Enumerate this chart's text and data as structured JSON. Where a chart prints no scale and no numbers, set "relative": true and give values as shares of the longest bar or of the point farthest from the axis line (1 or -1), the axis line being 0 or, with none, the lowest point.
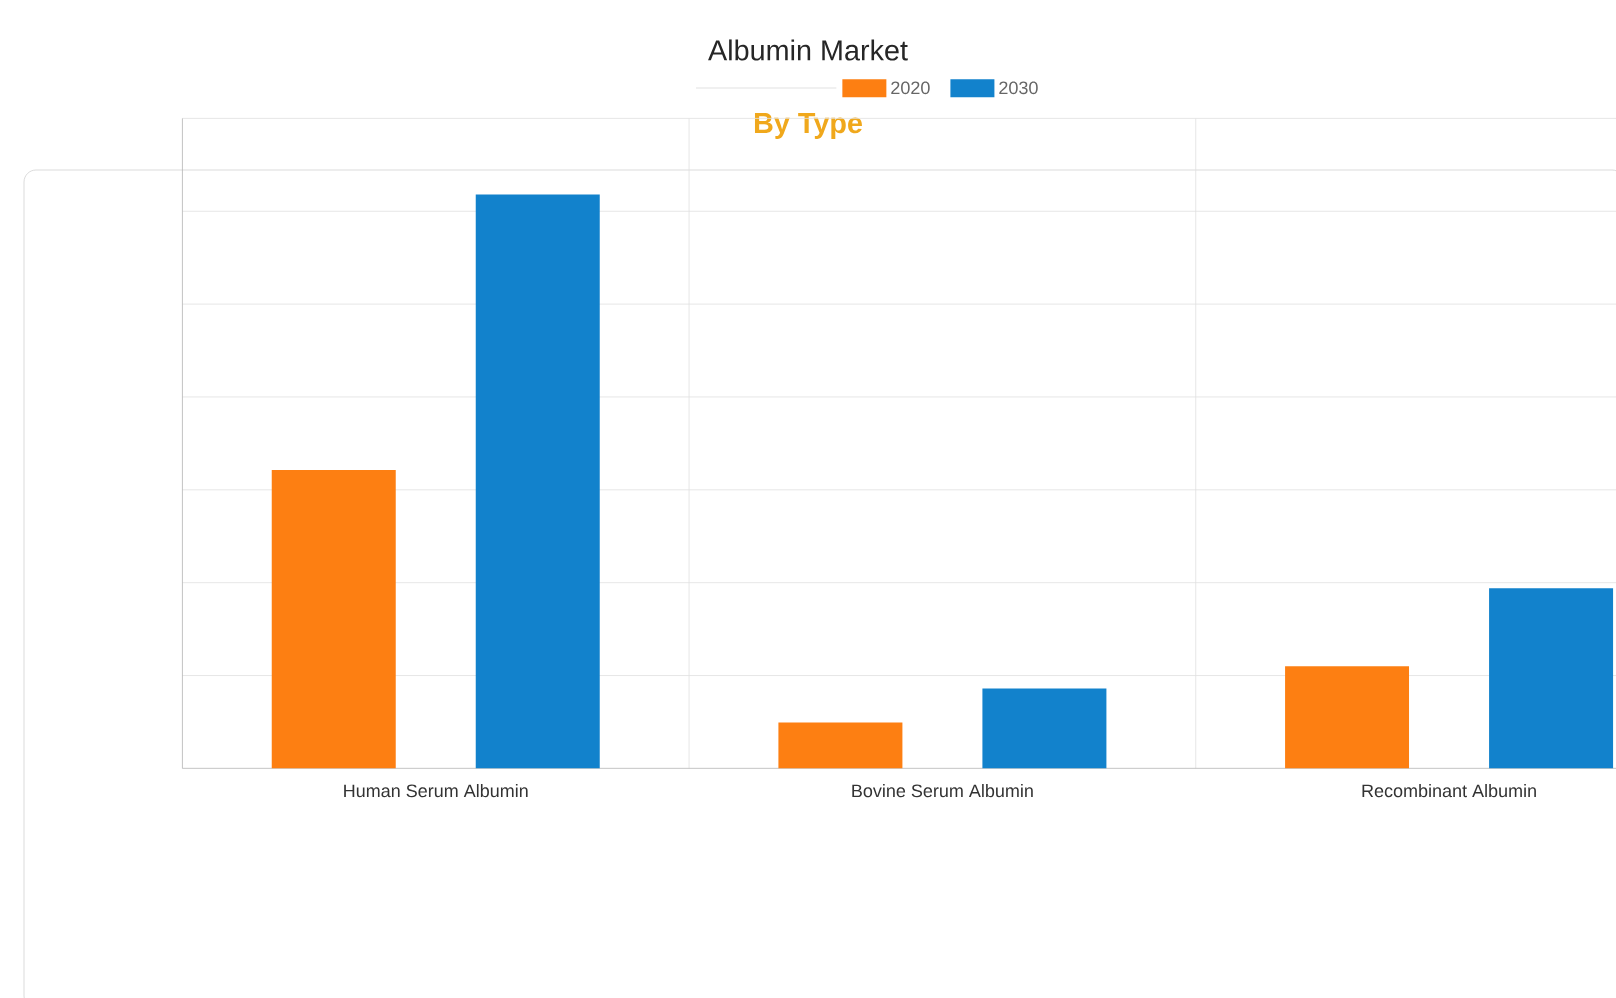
{
  "chart_data": {
    "type": "bar",
    "title": "Albumin Market",
    "subtitle": "By Type",
    "categories": [
      "Human Serum Albumin",
      "Bovine Serum Albumin",
      "Recombinant Albumin"
    ],
    "series": [
      {
        "name": "2020",
        "color": "#fd7f12",
        "values": [
          0.52,
          0.08,
          0.178
        ]
      },
      {
        "name": "2030",
        "color": "#1282cc",
        "values": [
          1,
          0.139,
          0.314
        ]
      }
    ],
    "relative": true,
    "grid": true,
    "legend": "top"
  }
}
